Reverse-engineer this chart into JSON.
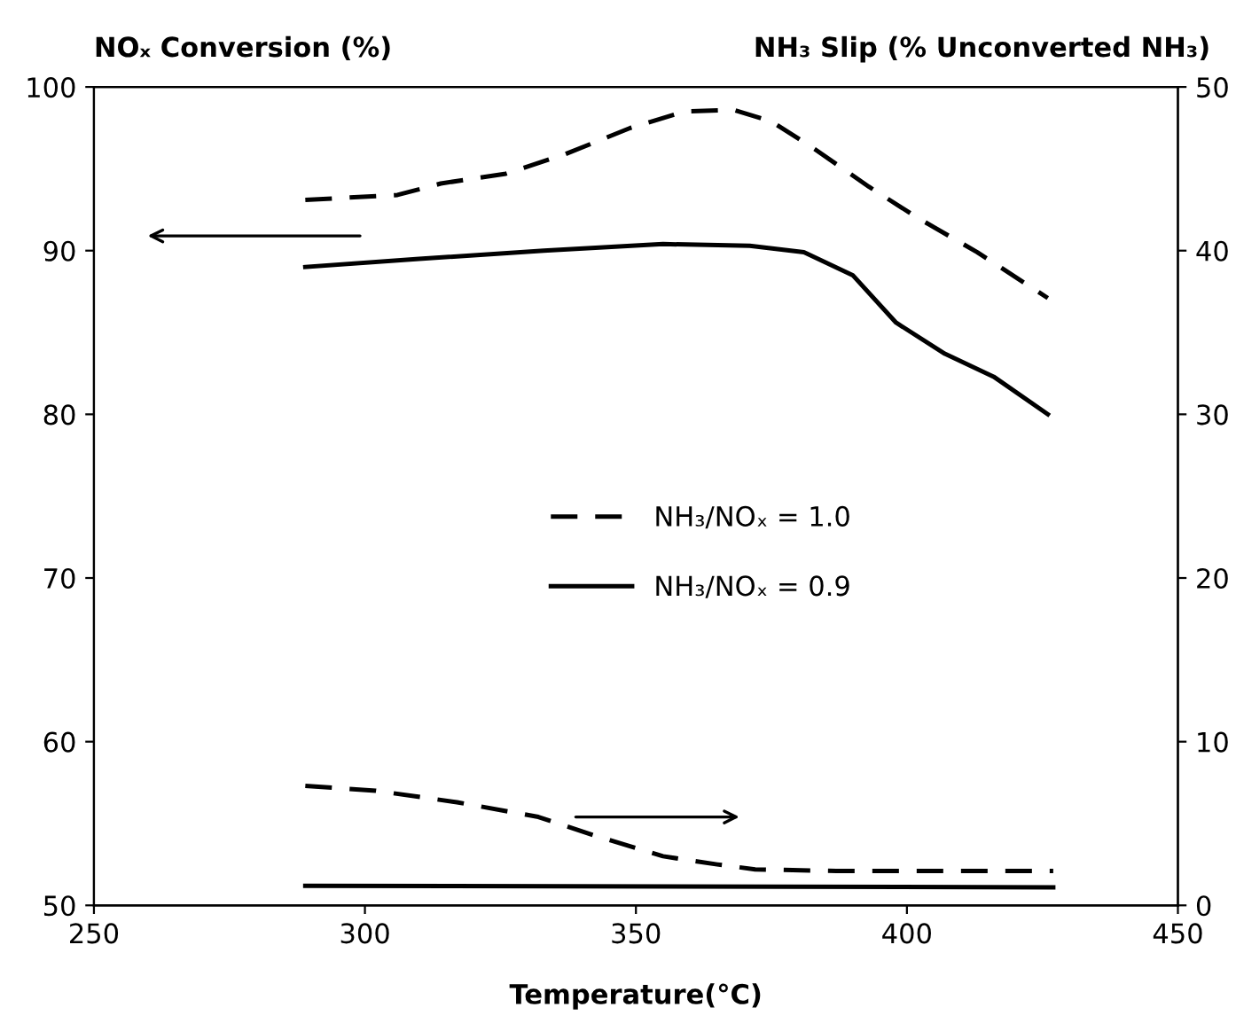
{
  "chart_data": {
    "type": "line",
    "ylabel": "NOₓ Conversion (%)",
    "y2label": "NH₃ Slip (% Unconverted NH₃)",
    "xlabel": "Temperature(°C)",
    "xlim": [
      250,
      450
    ],
    "xticks": [
      250,
      300,
      350,
      400,
      450
    ],
    "ylim": [
      50,
      100
    ],
    "yticks": [
      50,
      60,
      70,
      80,
      90,
      100
    ],
    "y2lim": [
      0,
      50
    ],
    "y2ticks": [
      0,
      10,
      20,
      30,
      40,
      50
    ],
    "grid": false,
    "legend": "center",
    "marker": "none",
    "series": [
      {
        "name": "NH₃/NOₓ = 1.0",
        "color": "#000000",
        "line_style": "dashed",
        "x": [
          289,
          306,
          314,
          326,
          337,
          349,
          359,
          368,
          375,
          383,
          393,
          402,
          413,
          426
        ],
        "values": [
          93.1,
          93.4,
          94.1,
          94.7,
          95.9,
          97.5,
          98.5,
          98.6,
          97.9,
          96.2,
          93.9,
          92.0,
          89.9,
          87.1
        ]
      },
      {
        "name": "NH₃/NOₓ = 0.9",
        "color": "#000000",
        "line_style": "solid",
        "x": [
          289,
          310,
          333,
          355,
          371,
          381,
          390,
          398,
          407,
          416,
          426
        ],
        "values": [
          89.0,
          89.5,
          90.0,
          90.4,
          90.3,
          89.9,
          88.5,
          85.6,
          83.7,
          82.3,
          80.0
        ]
      },
      {
        "color": "#000000",
        "line_style": "dashed",
        "axis": "y2",
        "x": [
          289,
          302,
          317,
          332,
          343,
          355,
          365,
          372,
          387,
          427
        ],
        "values": [
          7.3,
          7.0,
          6.3,
          5.4,
          4.2,
          3.0,
          2.5,
          2.2,
          2.1,
          2.1
        ]
      },
      {
        "color": "#000000",
        "line_style": "solid",
        "axis": "y2",
        "x": [
          289,
          427
        ],
        "values": [
          1.2,
          1.1
        ]
      }
    ]
  }
}
